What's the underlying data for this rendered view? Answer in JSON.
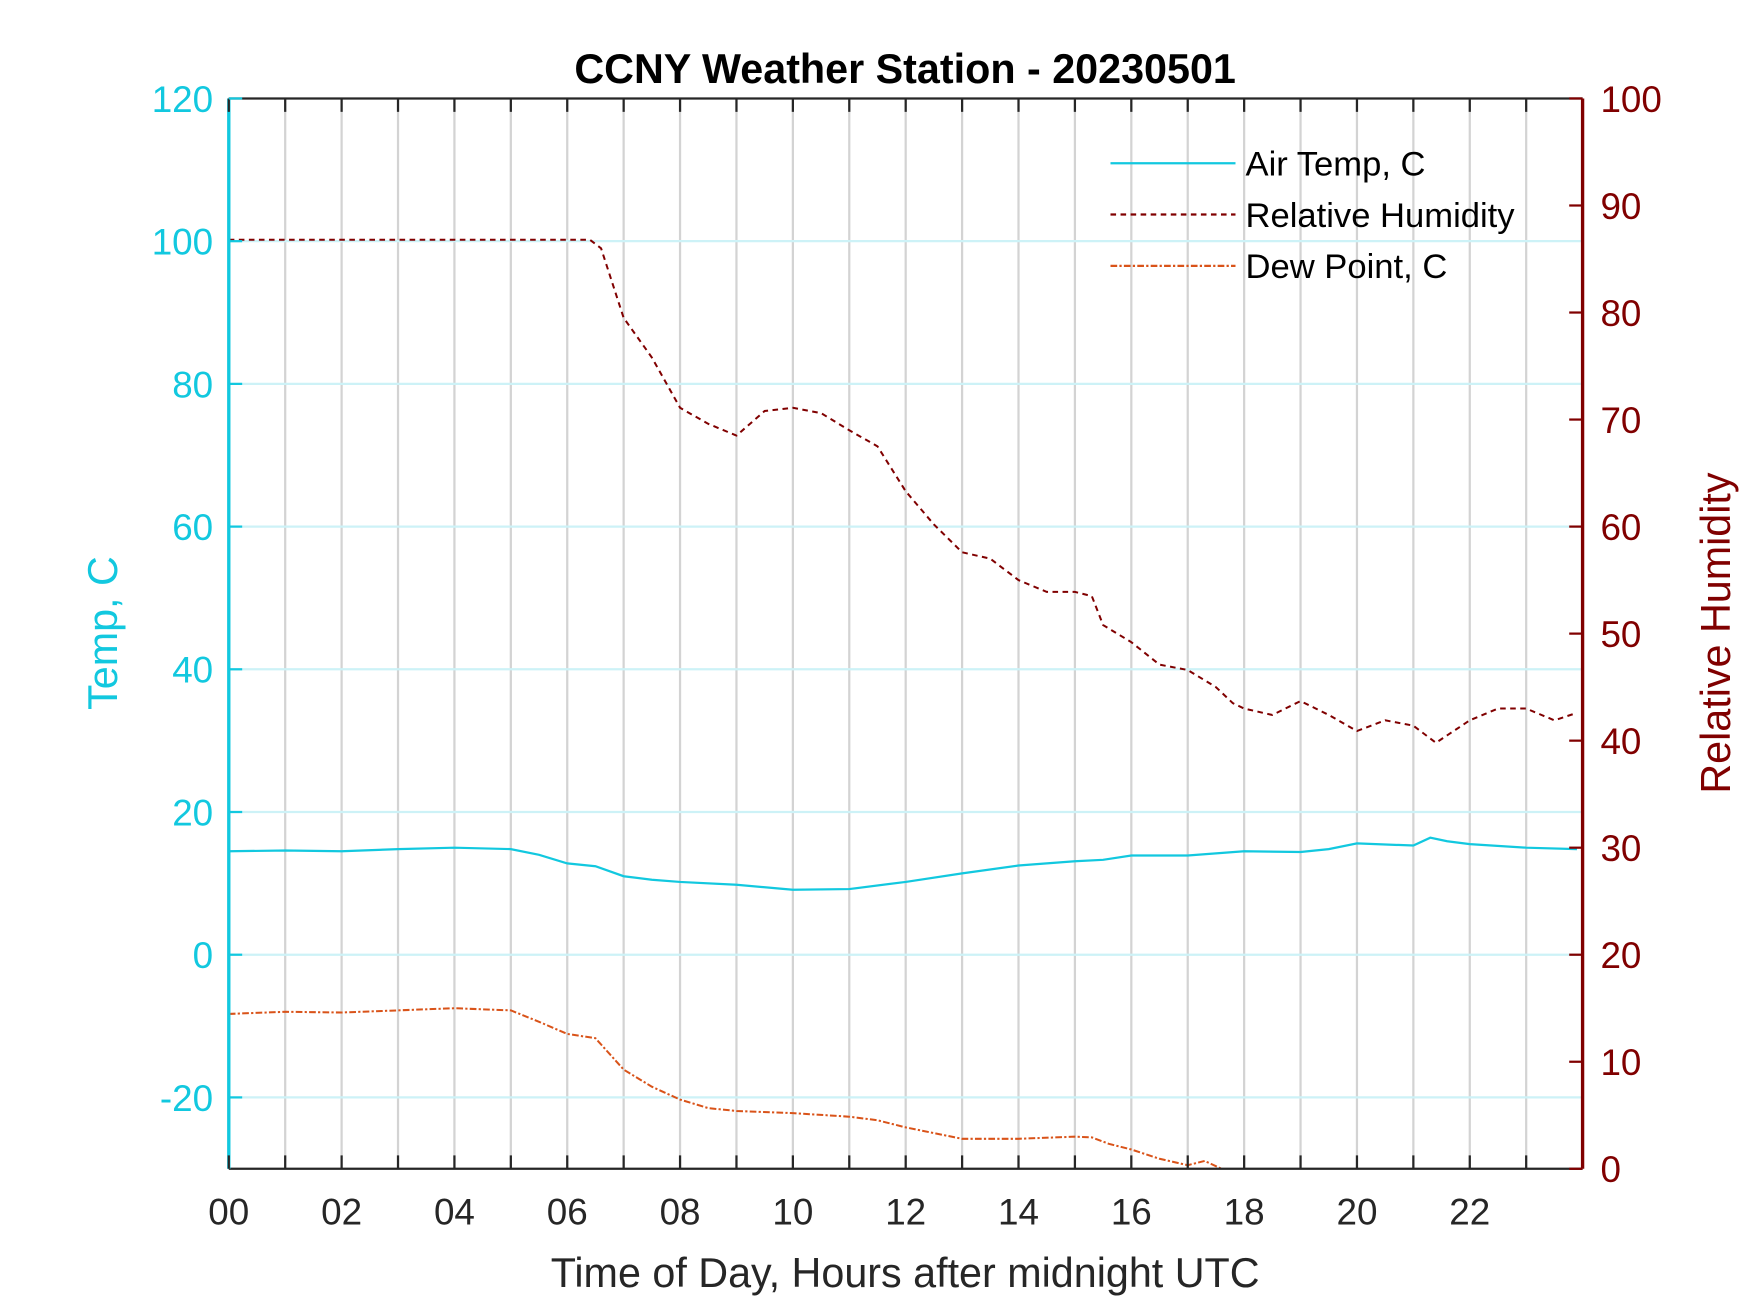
{
  "chart_data": {
    "type": "line",
    "title": "CCNY Weather Station - 20230501",
    "xlabel": "Time of Day, Hours after midnight UTC",
    "ylabel_left": "Temp, C",
    "ylabel_right": "Relative Humidity",
    "xlim": [
      0,
      24
    ],
    "ylim_left": [
      -30,
      120
    ],
    "ylim_right": [
      0,
      100
    ],
    "x_tick_labels": [
      "00",
      "02",
      "04",
      "06",
      "08",
      "10",
      "12",
      "14",
      "16",
      "18",
      "20",
      "22"
    ],
    "x_tick_values": [
      0,
      2,
      4,
      6,
      8,
      10,
      12,
      14,
      16,
      18,
      20,
      22
    ],
    "y_left_ticks": [
      -20,
      0,
      20,
      40,
      60,
      80,
      100,
      120
    ],
    "y_right_ticks": [
      0,
      10,
      20,
      30,
      40,
      50,
      60,
      70,
      80,
      90,
      100
    ],
    "grid": true,
    "legend_placement": "top-right",
    "colors": {
      "left_axis": "#12c8df",
      "right_axis": "#800000",
      "air_temp": "#12c8df",
      "rh": "#800000",
      "dew": "#d95319",
      "vgrid": "#d3d3d3",
      "hgrid": "#cdf2f7"
    },
    "series": [
      {
        "name": "Air Temp, C",
        "axis": "left",
        "style": "solid",
        "x": [
          0,
          1,
          2,
          3,
          4,
          5,
          5.5,
          6,
          6.5,
          7,
          7.5,
          8,
          9,
          10,
          11,
          12,
          13,
          14,
          15,
          15.5,
          16,
          17,
          18,
          19,
          19.5,
          20,
          21,
          21.3,
          21.6,
          22,
          23,
          23.9
        ],
        "y": [
          14.5,
          14.6,
          14.5,
          14.8,
          15.0,
          14.8,
          14.0,
          12.8,
          12.4,
          11.0,
          10.5,
          10.2,
          9.8,
          9.1,
          9.2,
          10.2,
          11.4,
          12.5,
          13.1,
          13.3,
          13.9,
          13.9,
          14.5,
          14.4,
          14.8,
          15.6,
          15.3,
          16.4,
          15.9,
          15.5,
          15.0,
          14.8
        ]
      },
      {
        "name": "Relative Humidity",
        "axis": "right",
        "style": "dashed",
        "x": [
          0,
          6.4,
          6.6,
          7,
          7.5,
          8,
          8.5,
          9,
          9.5,
          10,
          10.5,
          11,
          11.5,
          12,
          12.5,
          13,
          13.5,
          14,
          14.5,
          15,
          15.3,
          15.5,
          16,
          16.5,
          17,
          17.5,
          17.8,
          18,
          18.5,
          19,
          19.5,
          20,
          20.5,
          21,
          21.4,
          22,
          22.5,
          23,
          23.5,
          23.9
        ],
        "y": [
          86.8,
          86.8,
          86.0,
          79.5,
          75.8,
          71.1,
          69.6,
          68.5,
          70.8,
          71.1,
          70.6,
          69.0,
          67.5,
          63.3,
          60.2,
          57.6,
          57.0,
          55.0,
          53.9,
          53.9,
          53.5,
          50.8,
          49.2,
          47.1,
          46.6,
          45.0,
          43.5,
          43.0,
          42.4,
          43.7,
          42.4,
          40.9,
          41.9,
          41.4,
          39.8,
          41.9,
          43.0,
          43.0,
          41.9,
          42.6
        ]
      },
      {
        "name": "Dew Point, C",
        "axis": "left",
        "style": "dashdot",
        "x": [
          0,
          1,
          2,
          3,
          4,
          5,
          5.5,
          6,
          6.5,
          7,
          7.5,
          8,
          8.5,
          9,
          10,
          11,
          11.5,
          12,
          12.5,
          13,
          14,
          15,
          15.3,
          15.6,
          16,
          16.5,
          17,
          17.3,
          17.6
        ],
        "y": [
          -8.3,
          -8.0,
          -8.1,
          -7.8,
          -7.5,
          -7.8,
          -9.4,
          -11.1,
          -11.7,
          -16.1,
          -18.5,
          -20.3,
          -21.5,
          -21.9,
          -22.2,
          -22.7,
          -23.2,
          -24.2,
          -25.0,
          -25.8,
          -25.8,
          -25.5,
          -25.6,
          -26.5,
          -27.3,
          -28.6,
          -29.5,
          -28.9,
          -30.0
        ]
      }
    ]
  }
}
